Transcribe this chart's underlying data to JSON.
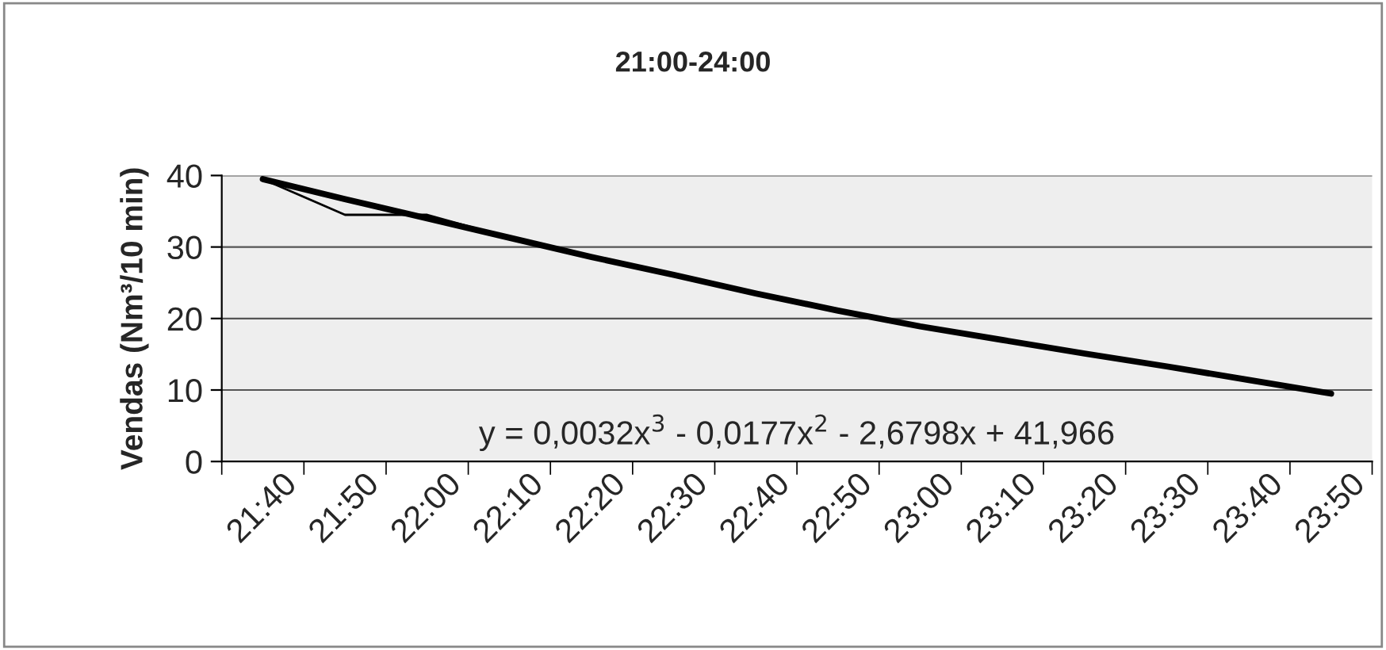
{
  "chart_data": {
    "type": "line",
    "title": "21:00-24:00",
    "ylabel": "Vendas (Nm³/10 min)",
    "categories": [
      "21:40",
      "21:50",
      "22:00",
      "22:10",
      "22:20",
      "22:30",
      "22:40",
      "22:50",
      "23:00",
      "23:10",
      "23:20",
      "23:30",
      "23:40",
      "23:50"
    ],
    "series": [
      {
        "color": "#000000",
        "values": [
          39.5,
          34.5,
          34.5,
          31.3,
          28.6,
          26.1,
          23.5,
          21.1,
          18.9,
          17.0,
          15.1,
          13.3,
          11.4,
          9.5
        ]
      },
      {
        "color": "#000000",
        "line_style": "solid",
        "values": [
          39.5,
          36.7,
          34.0,
          31.3,
          28.6,
          26.1,
          23.5,
          21.1,
          18.9,
          17.0,
          15.1,
          13.3,
          11.4,
          9.5
        ]
      }
    ],
    "ylim": [
      0,
      40
    ],
    "yticks": [
      0,
      10,
      20,
      30,
      40
    ],
    "grid": "y",
    "annotations": [
      "y = 0,0032x$^{3}$ - 0,0177x$^{2}$ - 2,6798x + 41,966"
    ]
  }
}
